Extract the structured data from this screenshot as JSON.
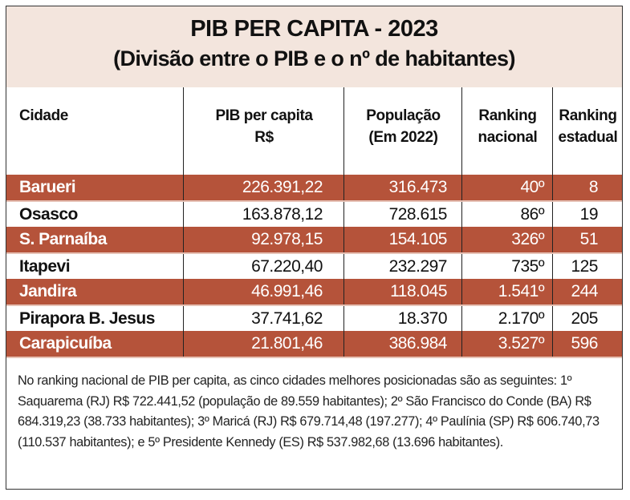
{
  "title": "PIB PER CAPITA - 2023",
  "subtitle": "(Divisão entre o PIB e o nº de habitantes)",
  "colors": {
    "header_bg": "#f3e5dd",
    "highlight_row": "#b5533a"
  },
  "columns": [
    "Cidade",
    "PIB per capita R$",
    "População (Em 2022)",
    "Ranking nacional",
    "Ranking estadual"
  ],
  "rows": [
    {
      "cidade": "Barueri",
      "pib": "226.391,22",
      "populacao": "316.473",
      "nacional": "40º",
      "estadual": "8"
    },
    {
      "cidade": "Osasco",
      "pib": "163.878,12",
      "populacao": "728.615",
      "nacional": "86º",
      "estadual": "19"
    },
    {
      "cidade": "S. Parnaíba",
      "pib": "92.978,15",
      "populacao": "154.105",
      "nacional": "326º",
      "estadual": "51"
    },
    {
      "cidade": "Itapevi",
      "pib": "67.220,40",
      "populacao": "232.297",
      "nacional": "735º",
      "estadual": "125"
    },
    {
      "cidade": "Jandira",
      "pib": "46.991,46",
      "populacao": "118.045",
      "nacional": "1.541º",
      "estadual": "244"
    },
    {
      "cidade": "Pirapora B. Jesus",
      "pib": "37.741,62",
      "populacao": "18.370",
      "nacional": "2.170º",
      "estadual": "205"
    },
    {
      "cidade": "Carapicuíba",
      "pib": "21.801,46",
      "populacao": "386.984",
      "nacional": "3.527º",
      "estadual": "596"
    }
  ],
  "footnote": "No ranking nacional de PIB per capita, as cinco cidades melhores posicionadas são as seguintes: 1º Saquarema (RJ) R$ 722.441,52 (população de 89.559 habitantes); 2º São Francisco do Conde (BA) R$ 684.319,23 (38.733 habitantes); 3º Maricá (RJ) R$ 679.714,48 (197.277); 4º Paulínia (SP) R$ 606.740,73 (110.537 habitantes); e 5º Presidente Kennedy (ES) R$ 537.982,68 (13.696 habitantes)."
}
